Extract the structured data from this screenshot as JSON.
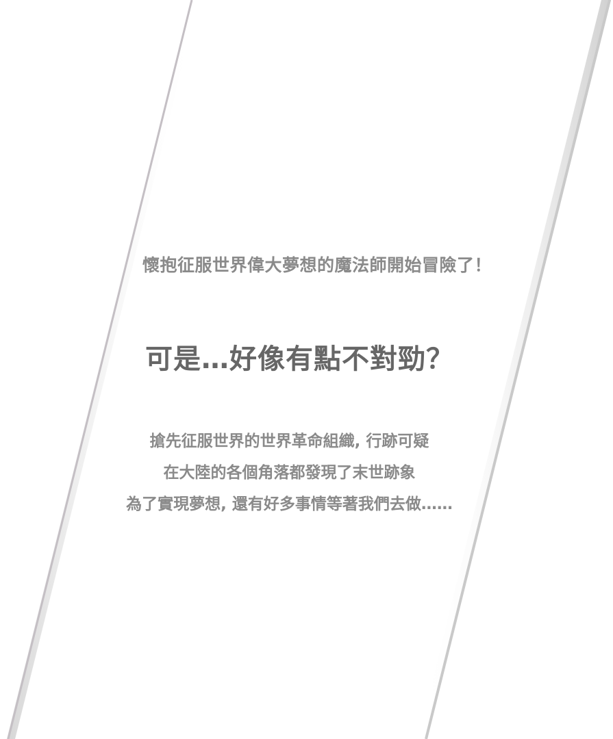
{
  "intro": {
    "tagline": "懷抱征服世界偉大夢想的魔法師開始冒險了！",
    "headline": "可是…好像有點不對勁？",
    "story_lines": [
      "搶先征服世界的世界革命組織, 行跡可疑",
      "在大陸的各個角落都發現了末世跡象",
      "為了實現夢想, 還有好多事情等著我們去做……"
    ]
  },
  "colors": {
    "background": "#ffffff",
    "text_light": "#8a8a8a",
    "text_dark": "#666666",
    "stripe_shadow": "#c8c8c8"
  }
}
